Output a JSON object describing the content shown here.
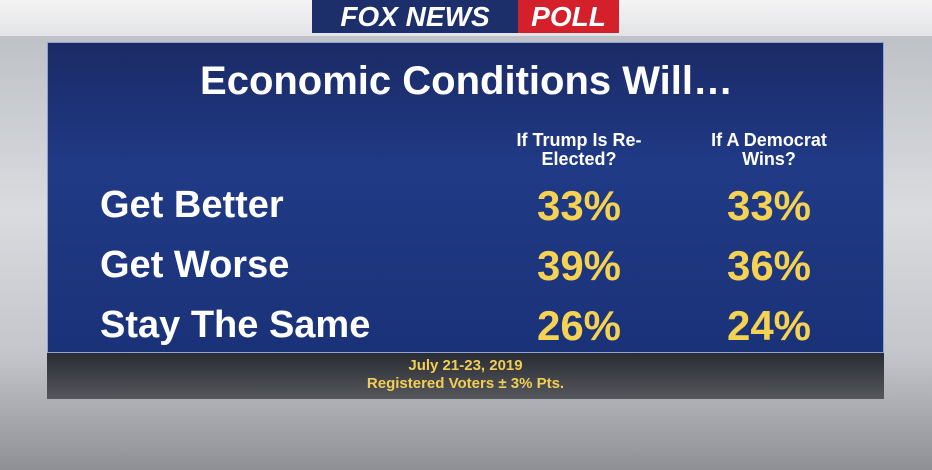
{
  "header": {
    "brand": "FOX NEWS",
    "badge": "POLL"
  },
  "title": "Economic Conditions Will…",
  "table": {
    "columns": [
      "If Trump Is Re-Elected?",
      "If A Democrat Wins?"
    ],
    "rows": [
      [
        "Get Better",
        "33%",
        "33%"
      ],
      [
        "Get Worse",
        "39%",
        "36%"
      ],
      [
        "Stay The Same",
        "26%",
        "24%"
      ]
    ]
  },
  "footer": {
    "date": "July 21-23, 2019",
    "note": "Registered Voters ± 3% Pts."
  }
}
